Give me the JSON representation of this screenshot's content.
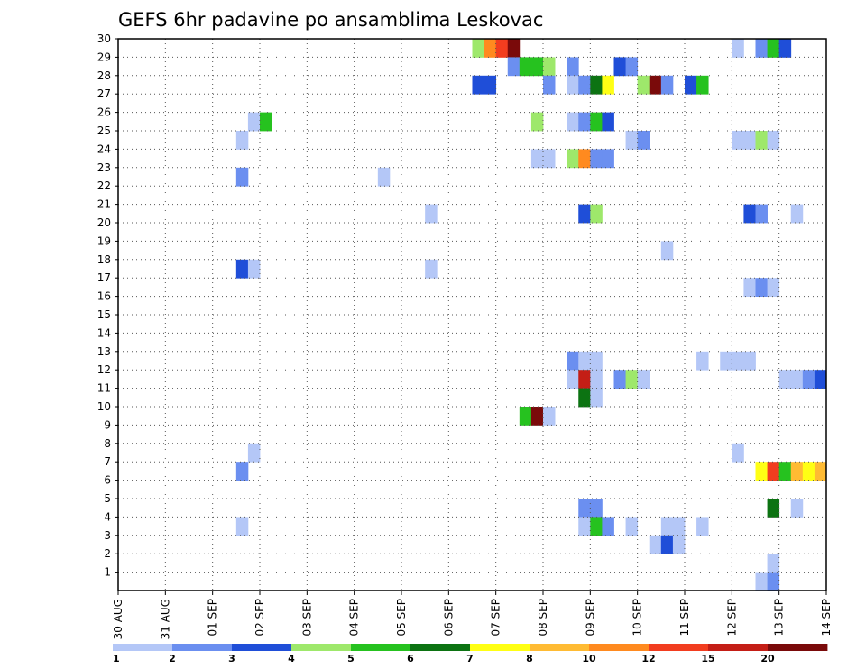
{
  "chart_data": {
    "type": "heatmap",
    "title": "GEFS 6hr padavine po ansamblima Leskovac",
    "xlabel": "",
    "ylabel": "",
    "x_tick_labels": [
      "30 AUG",
      "31 AUG",
      "01 SEP",
      "02 SEP",
      "03 SEP",
      "04 SEP",
      "05 SEP",
      "06 SEP",
      "07 SEP",
      "08 SEP",
      "09 SEP",
      "10 SEP",
      "11 SEP",
      "12 SEP",
      "13 SEP",
      "14 SEP"
    ],
    "y_tick_labels": [
      "1",
      "2",
      "3",
      "4",
      "5",
      "6",
      "7",
      "8",
      "9",
      "10",
      "11",
      "12",
      "13",
      "14",
      "15",
      "16",
      "17",
      "18",
      "19",
      "20",
      "21",
      "22",
      "23",
      "24",
      "25",
      "26",
      "27",
      "28",
      "29",
      "30"
    ],
    "ylim": [
      0,
      30
    ],
    "steps_per_day": 4,
    "grid": true,
    "legend": {
      "placement": "bottom",
      "labels": [
        "1",
        "2",
        "3",
        "4",
        "5",
        "6",
        "7",
        "8",
        "10",
        "12",
        "15",
        "20"
      ],
      "colors": [
        "#b4c7f7",
        "#6b8ff0",
        "#1f4ed8",
        "#9ee86b",
        "#26c21f",
        "#0c7312",
        "#ffff14",
        "#ffbb33",
        "#ff8a1f",
        "#f23d1f",
        "#c41e16",
        "#7a0a0a"
      ]
    },
    "cells": [
      [
        29,
        30,
        4
      ],
      [
        29,
        31,
        9
      ],
      [
        29,
        32,
        10
      ],
      [
        29,
        33,
        12
      ],
      [
        29,
        52,
        1
      ],
      [
        29,
        54,
        2
      ],
      [
        29,
        55,
        5
      ],
      [
        29,
        56,
        3
      ],
      [
        28,
        33,
        2
      ],
      [
        28,
        34,
        5
      ],
      [
        28,
        35,
        5
      ],
      [
        28,
        36,
        4
      ],
      [
        28,
        38,
        2
      ],
      [
        28,
        42,
        3
      ],
      [
        28,
        43,
        2
      ],
      [
        27,
        30,
        3
      ],
      [
        27,
        31,
        3
      ],
      [
        27,
        36,
        2
      ],
      [
        27,
        38,
        1
      ],
      [
        27,
        39,
        2
      ],
      [
        27,
        40,
        6
      ],
      [
        27,
        41,
        7
      ],
      [
        27,
        44,
        4
      ],
      [
        27,
        45,
        12
      ],
      [
        27,
        46,
        2
      ],
      [
        27,
        48,
        3
      ],
      [
        27,
        49,
        5
      ],
      [
        25,
        11,
        1
      ],
      [
        25,
        12,
        5
      ],
      [
        25,
        35,
        4
      ],
      [
        25,
        38,
        1
      ],
      [
        25,
        39,
        2
      ],
      [
        25,
        40,
        5
      ],
      [
        25,
        41,
        3
      ],
      [
        24,
        10,
        1
      ],
      [
        24,
        43,
        1
      ],
      [
        24,
        44,
        2
      ],
      [
        24,
        52,
        1
      ],
      [
        24,
        53,
        1
      ],
      [
        24,
        54,
        4
      ],
      [
        24,
        55,
        1
      ],
      [
        23,
        35,
        1
      ],
      [
        23,
        36,
        1
      ],
      [
        23,
        38,
        4
      ],
      [
        23,
        39,
        9
      ],
      [
        23,
        40,
        2
      ],
      [
        23,
        41,
        2
      ],
      [
        22,
        10,
        2
      ],
      [
        22,
        22,
        1
      ],
      [
        20,
        26,
        1
      ],
      [
        20,
        39,
        3
      ],
      [
        20,
        40,
        4
      ],
      [
        20,
        53,
        3
      ],
      [
        20,
        54,
        2
      ],
      [
        20,
        57,
        1
      ],
      [
        18,
        46,
        1
      ],
      [
        17,
        10,
        3
      ],
      [
        17,
        11,
        1
      ],
      [
        17,
        26,
        1
      ],
      [
        16,
        53,
        1
      ],
      [
        16,
        54,
        2
      ],
      [
        16,
        55,
        1
      ],
      [
        12,
        38,
        2
      ],
      [
        12,
        39,
        1
      ],
      [
        12,
        40,
        1
      ],
      [
        12,
        49,
        1
      ],
      [
        12,
        51,
        1
      ],
      [
        12,
        52,
        1
      ],
      [
        12,
        53,
        1
      ],
      [
        11,
        38,
        1
      ],
      [
        11,
        39,
        11
      ],
      [
        11,
        40,
        1
      ],
      [
        11,
        42,
        2
      ],
      [
        11,
        43,
        4
      ],
      [
        11,
        44,
        1
      ],
      [
        11,
        56,
        1
      ],
      [
        11,
        57,
        1
      ],
      [
        11,
        58,
        2
      ],
      [
        11,
        59,
        3
      ],
      [
        10,
        39,
        6
      ],
      [
        10,
        40,
        1
      ],
      [
        9,
        34,
        5
      ],
      [
        9,
        35,
        12
      ],
      [
        9,
        36,
        1
      ],
      [
        7,
        11,
        1
      ],
      [
        7,
        52,
        1
      ],
      [
        6,
        10,
        2
      ],
      [
        6,
        54,
        7
      ],
      [
        6,
        55,
        10
      ],
      [
        6,
        56,
        5
      ],
      [
        6,
        57,
        8
      ],
      [
        6,
        58,
        7
      ],
      [
        6,
        59,
        8
      ],
      [
        4,
        39,
        2
      ],
      [
        4,
        40,
        2
      ],
      [
        4,
        55,
        6
      ],
      [
        4,
        57,
        1
      ],
      [
        3,
        10,
        1
      ],
      [
        3,
        39,
        1
      ],
      [
        3,
        40,
        5
      ],
      [
        3,
        41,
        2
      ],
      [
        3,
        43,
        1
      ],
      [
        3,
        46,
        1
      ],
      [
        3,
        47,
        1
      ],
      [
        3,
        49,
        1
      ],
      [
        2,
        45,
        1
      ],
      [
        2,
        46,
        3
      ],
      [
        2,
        47,
        1
      ],
      [
        1,
        55,
        1
      ],
      [
        0,
        54,
        1
      ],
      [
        0,
        55,
        2
      ]
    ]
  }
}
